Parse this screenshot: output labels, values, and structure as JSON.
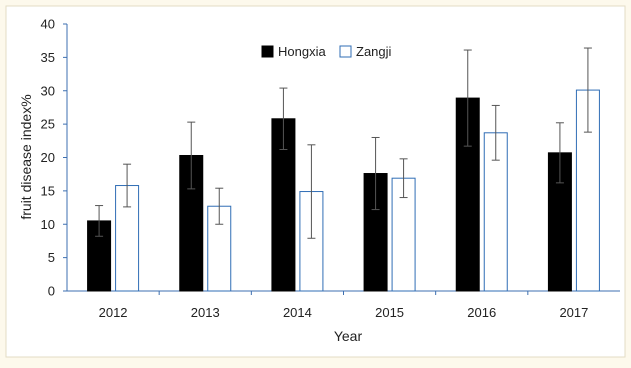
{
  "chart_data": {
    "type": "bar",
    "title": "",
    "xlabel": "Year",
    "ylabel": "fruit disease index%",
    "ylim": [
      0,
      40
    ],
    "yticks": [
      0,
      5,
      10,
      15,
      20,
      25,
      30,
      35,
      40
    ],
    "categories": [
      "2012",
      "2013",
      "2014",
      "2015",
      "2016",
      "2017"
    ],
    "legend_position": "top-center",
    "grid": false,
    "series": [
      {
        "name": "Hongxia",
        "fill": "#000000",
        "values": [
          10.5,
          20.3,
          25.8,
          17.6,
          28.9,
          20.7
        ],
        "error": [
          2.3,
          5.0,
          4.6,
          5.4,
          7.2,
          4.5
        ]
      },
      {
        "name": "Zangji",
        "fill": "#ffffff",
        "stroke": "#2f6db5",
        "values": [
          15.8,
          12.7,
          14.9,
          16.9,
          23.7,
          30.1
        ],
        "error": [
          3.2,
          2.7,
          7.0,
          2.9,
          4.1,
          6.3
        ]
      }
    ]
  }
}
